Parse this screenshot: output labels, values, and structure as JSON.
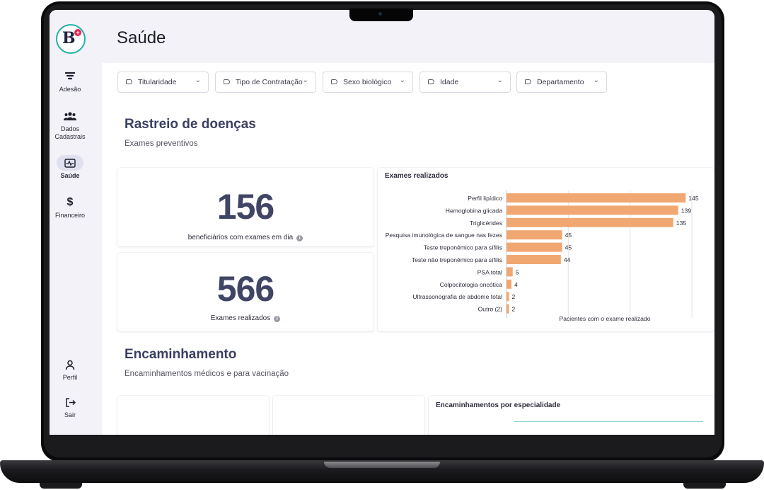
{
  "brand": {
    "logo_letter": "B",
    "logo_plus": "+",
    "accent": "#23b3a8",
    "plus_color": "#e4234f"
  },
  "sidebar": {
    "items": [
      {
        "label": "Adesão",
        "icon": "funnel-icon",
        "active": false
      },
      {
        "label": "Dados Cadastrais",
        "icon": "users-icon",
        "active": false
      },
      {
        "label": "Saúde",
        "icon": "health-icon",
        "active": true
      },
      {
        "label": "Financeiro",
        "icon": "dollar-icon",
        "active": false
      }
    ],
    "bottom": [
      {
        "label": "Perfil",
        "icon": "user-icon"
      },
      {
        "label": "Sair",
        "icon": "logout-icon"
      }
    ]
  },
  "page": {
    "title": "Saúde"
  },
  "filters": [
    "Titularidade",
    "Tipo de Contratação",
    "Sexo biológico",
    "Idade",
    "Departamento"
  ],
  "screening": {
    "title": "Rastreio de doenças",
    "subtitle": "Exames preventivos",
    "kpi1": {
      "value": "156",
      "label": "beneficiários com exames em dia"
    },
    "kpi2": {
      "value": "566",
      "label": "Exames realizados"
    }
  },
  "chart_data": {
    "type": "bar",
    "orientation": "horizontal",
    "title": "Exames realizados",
    "xlabel": "Pacientes com o exame realizado",
    "categories": [
      "Perfil lipídico",
      "Hemoglobina glicada",
      "Triglicérides",
      "Pesquisa imunológica de sangue nas fezes",
      "Teste treponêmico para sífilis",
      "Teste não treponêmico para sífilis",
      "PSA total",
      "Colpocitologia oncótica",
      "Ultrassonografia de abdome total",
      "Outro (2)"
    ],
    "values": [
      145,
      139,
      135,
      45,
      45,
      44,
      5,
      4,
      2,
      2
    ],
    "xlim": [
      0,
      150
    ],
    "grid": true,
    "bar_color": "#f1a772"
  },
  "referral": {
    "title": "Encaminhamento",
    "subtitle": "Encaminhamentos médicos e para vacinação",
    "chart_title": "Encaminhamentos por especialidade"
  }
}
